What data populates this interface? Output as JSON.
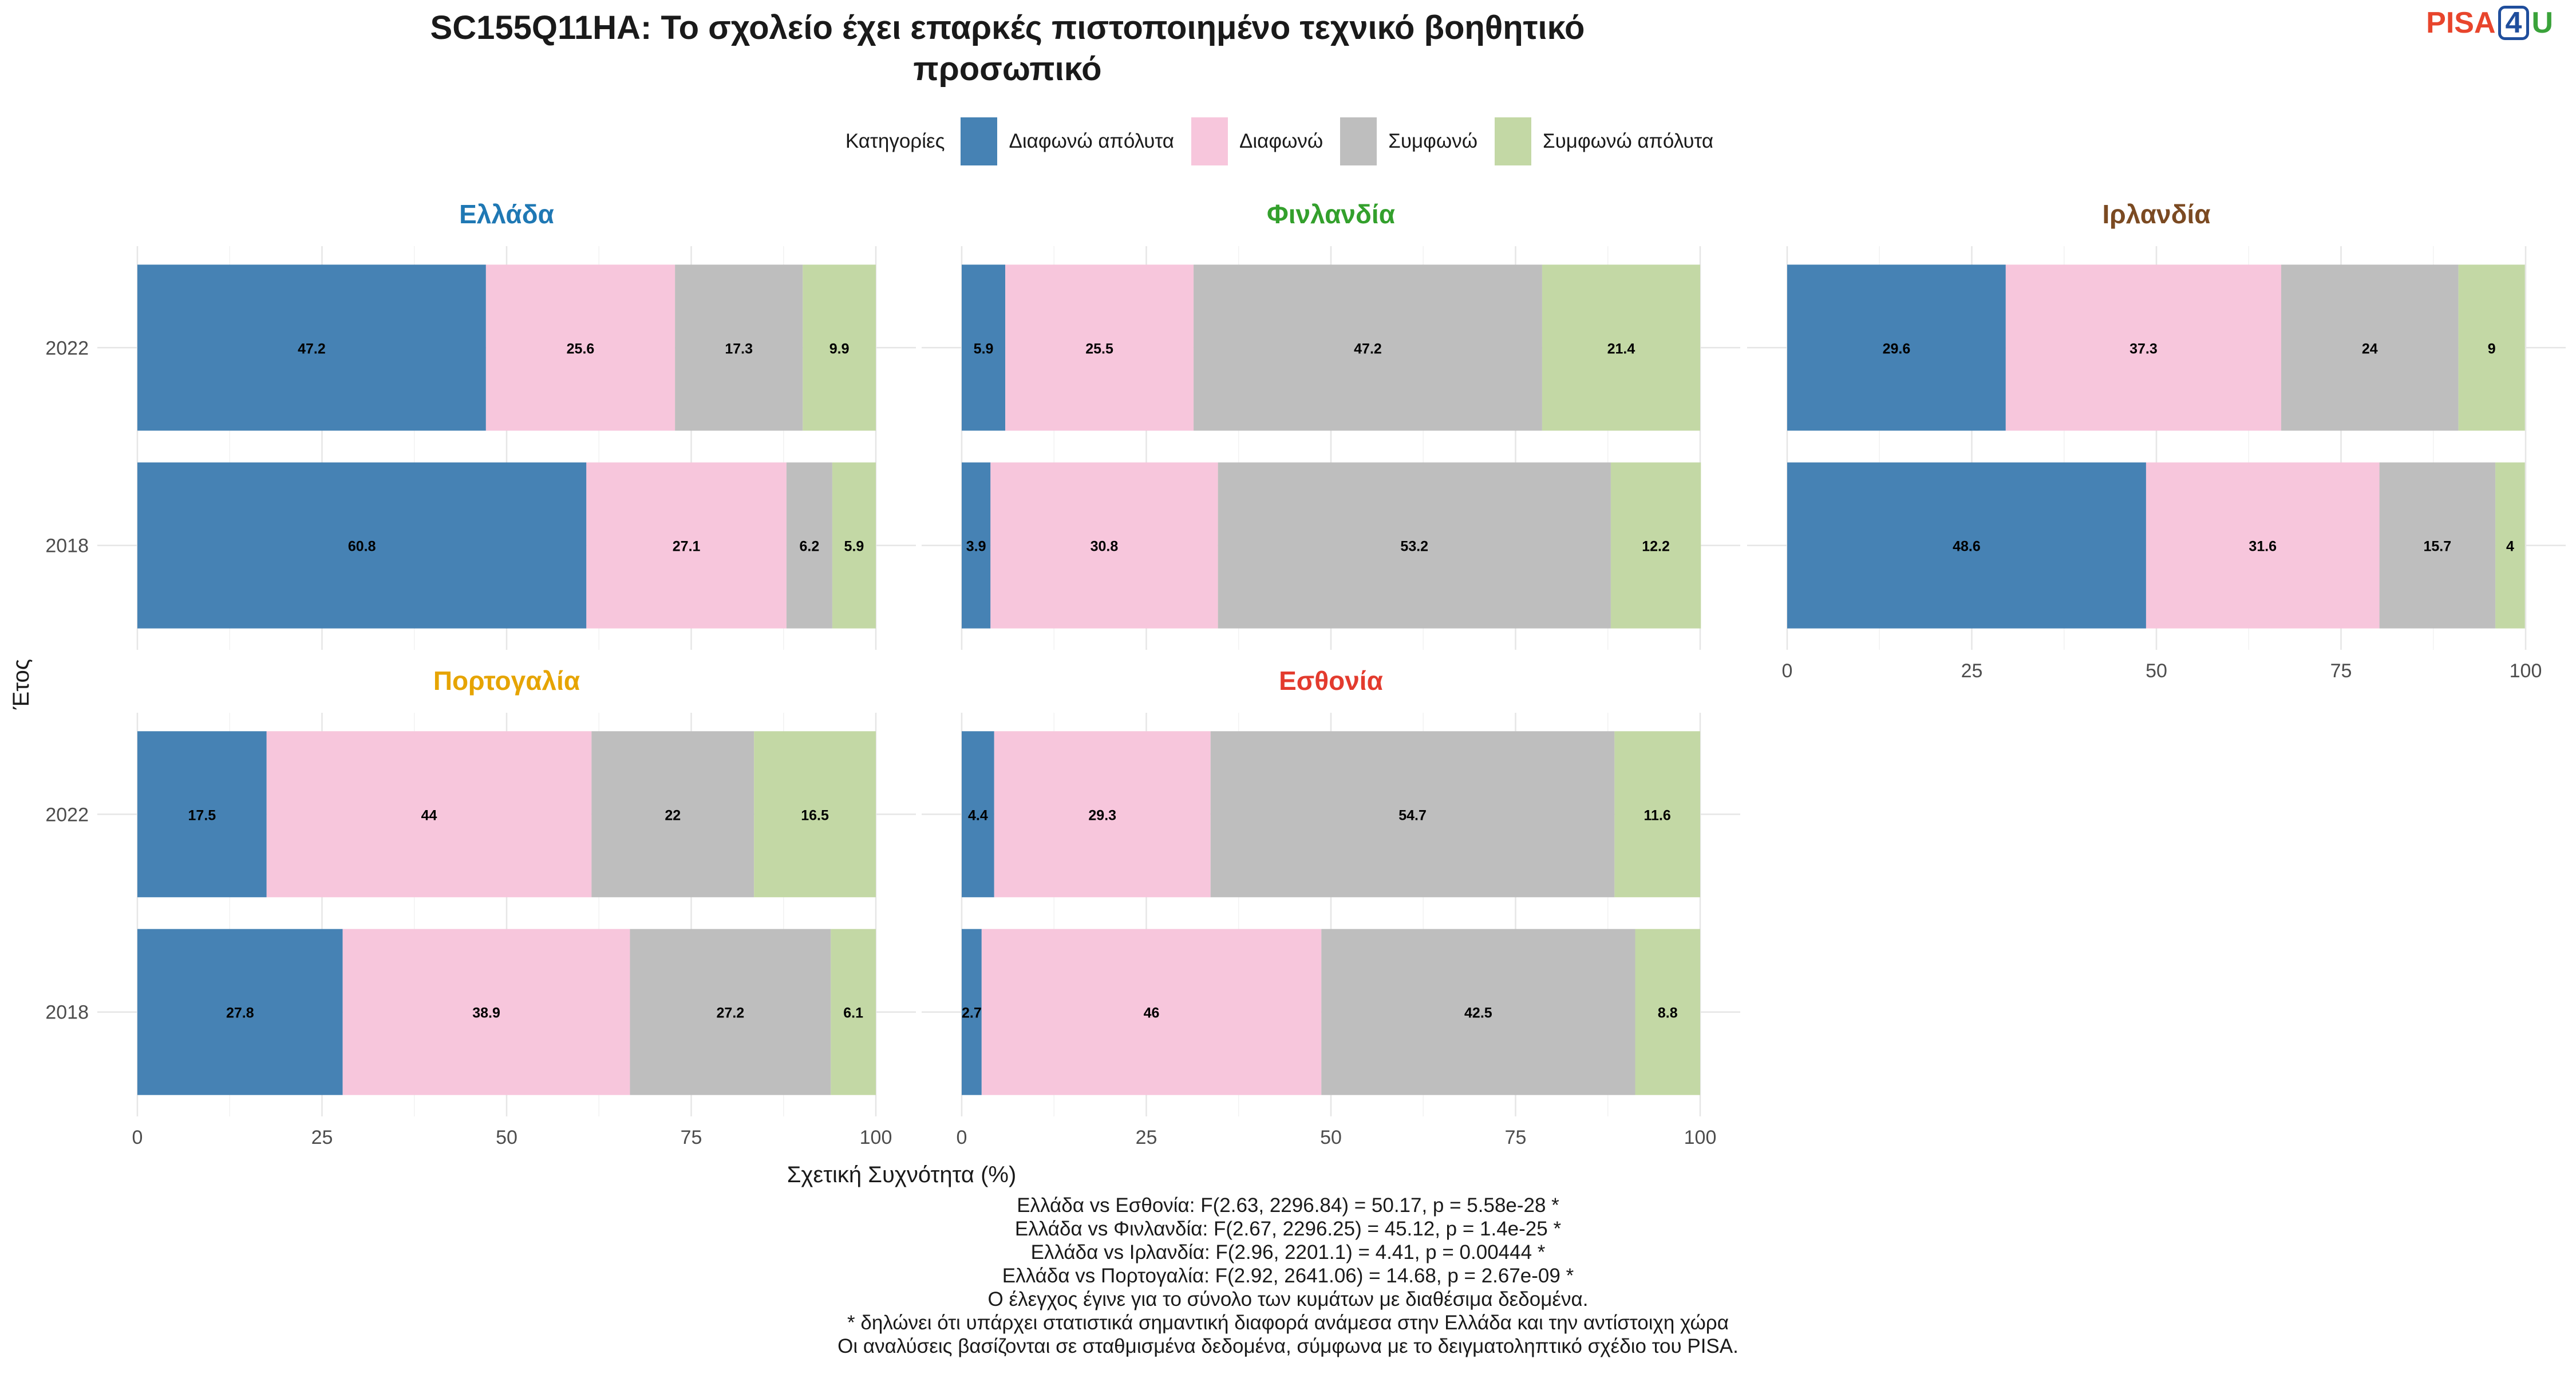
{
  "title_line1": "SC155Q11HA: Το σχολείο έχει επαρκές πιστοποιημένο τεχνικό βοηθητικό",
  "title_line2": "προσωπικό",
  "logo": {
    "pisa": "PISA",
    "four": "4",
    "u": "U"
  },
  "legend_title": "Κατηγορίες",
  "footer_lines": [
    "Ελλάδα vs Εσθονία: F(2.63, 2296.84) = 50.17, p = 5.58e-28 *",
    "Ελλάδα vs Φινλανδία: F(2.67, 2296.25) = 45.12, p = 1.4e-25 *",
    "Ελλάδα vs Ιρλανδία: F(2.96, 2201.1) = 4.41, p = 0.00444 *",
    "Ελλάδα vs Πορτογαλία: F(2.92, 2641.06) = 14.68, p = 2.67e-09 *",
    "Ο έλεγχος έγινε για το σύνολο των κυμάτων με διαθέσιμα δεδομένα.",
    "* δηλώνει ότι υπάρχει στατιστικά σημαντική διαφορά ανάμεσα στην Ελλάδα και την αντίστοιχη χώρα",
    "Οι αναλύσεις βασίζονται σε σταθμισμένα δεδομένα, σύμφωνα με το δειγματοληπτικό σχέδιο του PISA."
  ],
  "chart_data": {
    "type": "bar",
    "orientation": "horizontal-stacked",
    "xlabel": "Σχετική Συχνότητα (%)",
    "ylabel": "Έτος",
    "xlim": [
      0,
      100
    ],
    "xticks": [
      0,
      25,
      50,
      75,
      100
    ],
    "years": [
      "2022",
      "2018"
    ],
    "categories": [
      "Διαφωνώ απόλυτα",
      "Διαφωνώ",
      "Συμφωνώ",
      "Συμφωνώ απόλυτα"
    ],
    "colors": [
      "#4682b4",
      "#f7c6dc",
      "#bebebe",
      "#c3d8a5"
    ],
    "grid": true,
    "legend_position": "top",
    "panels": [
      {
        "name": "Ελλάδα",
        "color": "#1f78b4",
        "values": {
          "2022": [
            47.2,
            25.6,
            17.3,
            9.9
          ],
          "2018": [
            60.8,
            27.1,
            6.2,
            5.9
          ]
        }
      },
      {
        "name": "Φινλανδία",
        "color": "#33a02c",
        "values": {
          "2022": [
            5.9,
            25.5,
            47.2,
            21.4
          ],
          "2018": [
            3.9,
            30.8,
            53.2,
            12.2
          ]
        }
      },
      {
        "name": "Ιρλανδία",
        "color": "#7b4a22",
        "values": {
          "2022": [
            29.6,
            37.3,
            24,
            9
          ],
          "2018": [
            48.6,
            31.6,
            15.7,
            4
          ]
        }
      },
      {
        "name": "Πορτογαλία",
        "color": "#e6a400",
        "values": {
          "2022": [
            17.5,
            44,
            22,
            16.5
          ],
          "2018": [
            27.8,
            38.9,
            27.2,
            6.1
          ]
        }
      },
      {
        "name": "Εσθονία",
        "color": "#e33b2e",
        "values": {
          "2022": [
            4.4,
            29.3,
            54.7,
            11.6
          ],
          "2018": [
            2.7,
            46,
            42.5,
            8.8
          ]
        }
      }
    ]
  }
}
